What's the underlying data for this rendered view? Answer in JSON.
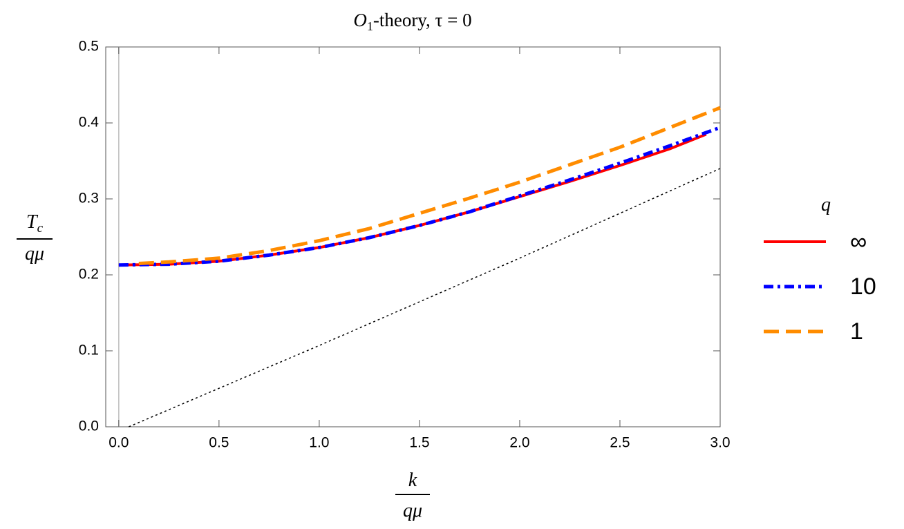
{
  "chart_data": {
    "type": "line",
    "title": [
      "O",
      "1",
      "-theory, τ = 0"
    ],
    "xlabel": {
      "numerator": "k",
      "denominator": "qμ"
    },
    "ylabel": {
      "numerator": "T",
      "numerator_subscript": "c",
      "denominator": "qμ"
    },
    "xlim": [
      -0.065,
      3.0
    ],
    "ylim": [
      0,
      0.5
    ],
    "xticks": [
      {
        "value": 0,
        "label": "0.0"
      },
      0.5,
      {
        "value": 1,
        "label": "1.0"
      },
      1.5,
      {
        "value": 2,
        "label": "2.0"
      },
      2.5,
      {
        "value": 3,
        "label": "3.0"
      }
    ],
    "yticks": [
      {
        "value": 0,
        "label": "0.0"
      },
      0.1,
      0.2,
      0.3,
      0.4,
      0.5
    ],
    "legend_title": "q",
    "legend": "right",
    "series": [
      {
        "name": "∞",
        "color": "#ff0000",
        "style": "solid",
        "x": [
          0,
          0.25,
          0.5,
          0.75,
          1.0,
          1.25,
          1.5,
          1.75,
          2.0,
          2.25,
          2.5,
          2.75,
          2.93
        ],
        "values": [
          0.213,
          0.214,
          0.218,
          0.226,
          0.236,
          0.249,
          0.265,
          0.283,
          0.303,
          0.323,
          0.344,
          0.366,
          0.385
        ]
      },
      {
        "name": "10",
        "color": "#0000ff",
        "style": "dashdot",
        "x": [
          0,
          0.25,
          0.5,
          0.75,
          1.0,
          1.25,
          1.5,
          1.75,
          2.0,
          2.25,
          2.5,
          2.75,
          3.0
        ],
        "values": [
          0.213,
          0.214,
          0.218,
          0.226,
          0.236,
          0.249,
          0.265,
          0.283,
          0.304,
          0.325,
          0.347,
          0.37,
          0.394
        ]
      },
      {
        "name": "1",
        "color": "#ff8c00",
        "style": "dashed",
        "x": [
          0.1,
          0.25,
          0.5,
          0.75,
          1.0,
          1.25,
          1.5,
          1.75,
          2.0,
          2.25,
          2.5,
          2.75,
          3.0
        ],
        "values": [
          0.215,
          0.217,
          0.222,
          0.232,
          0.245,
          0.261,
          0.281,
          0.301,
          0.322,
          0.345,
          0.368,
          0.394,
          0.42
        ]
      },
      {
        "color": "#000000",
        "style": "dotted",
        "x": [
          0.05,
          1.0,
          2.0,
          3.0
        ],
        "values": [
          0,
          0.107,
          0.222,
          0.34
        ]
      }
    ]
  }
}
